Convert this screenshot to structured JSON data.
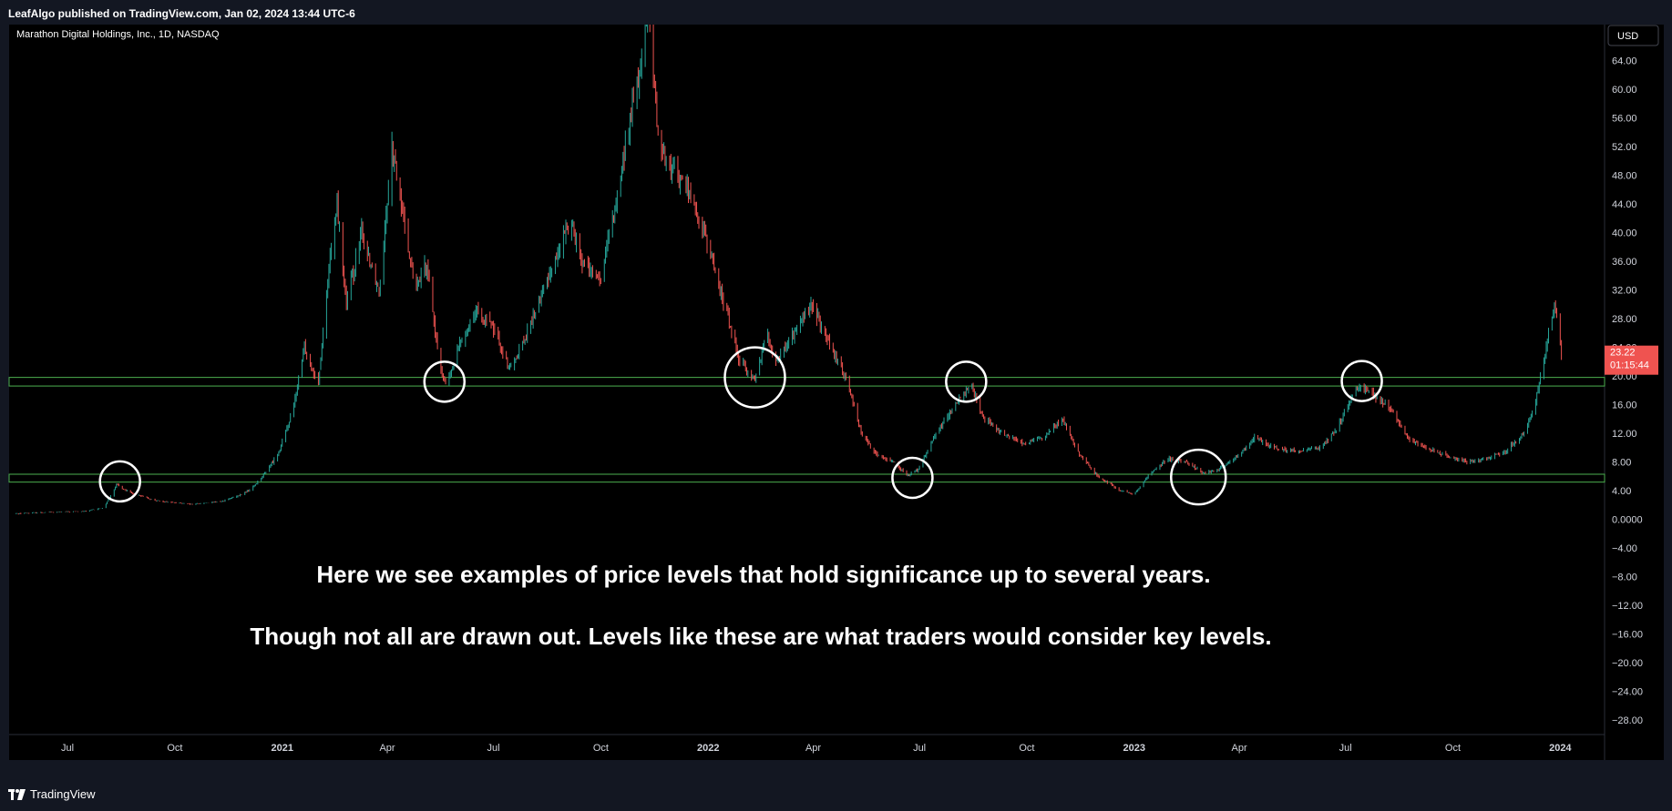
{
  "header": {
    "published": "LeafAlgo published on TradingView.com, Jan 02, 2024 13:44 UTC-6"
  },
  "footer": {
    "brand": "TradingView"
  },
  "colors": {
    "background": "#000000",
    "frame": "#131722",
    "up": "#26a69a",
    "down": "#ef5350",
    "level_line": "#4caf50",
    "annotation": "#ffffff",
    "price_tag": "#ef5350"
  },
  "chart_data": {
    "type": "candlestick",
    "symbol_label": "Marathon Digital Holdings, Inc., 1D, NASDAQ",
    "currency_label": "USD",
    "y_ticks": [
      "64.00",
      "60.00",
      "56.00",
      "52.00",
      "48.00",
      "44.00",
      "40.00",
      "36.00",
      "32.00",
      "28.00",
      "24.00",
      "20.00",
      "16.00",
      "12.00",
      "8.00",
      "4.00",
      "0.0000",
      "−4.00",
      "−8.00",
      "−12.00",
      "−16.00",
      "−20.00",
      "−24.00",
      "−28.00"
    ],
    "ylim": [
      -30,
      69
    ],
    "x_ticks": [
      {
        "label": "Jul",
        "date": "2020-07-01",
        "bold": false
      },
      {
        "label": "Oct",
        "date": "2020-10-01",
        "bold": false
      },
      {
        "label": "2021",
        "date": "2021-01-01",
        "bold": true
      },
      {
        "label": "Apr",
        "date": "2021-04-01",
        "bold": false
      },
      {
        "label": "Jul",
        "date": "2021-07-01",
        "bold": false
      },
      {
        "label": "Oct",
        "date": "2021-10-01",
        "bold": false
      },
      {
        "label": "2022",
        "date": "2022-01-01",
        "bold": true
      },
      {
        "label": "Apr",
        "date": "2022-04-01",
        "bold": false
      },
      {
        "label": "Jul",
        "date": "2022-07-01",
        "bold": false
      },
      {
        "label": "Oct",
        "date": "2022-10-01",
        "bold": false
      },
      {
        "label": "2023",
        "date": "2023-01-01",
        "bold": true
      },
      {
        "label": "Apr",
        "date": "2023-04-01",
        "bold": false
      },
      {
        "label": "Jul",
        "date": "2023-07-01",
        "bold": false
      },
      {
        "label": "Oct",
        "date": "2023-10-01",
        "bold": false
      },
      {
        "label": "2024",
        "date": "2024-01-01",
        "bold": true
      }
    ],
    "last_price": {
      "value": 23.22,
      "label": "23.22",
      "countdown": "01:15:44"
    },
    "key_level_zones": [
      {
        "low": 18.6,
        "high": 19.8
      },
      {
        "low": 5.2,
        "high": 6.3
      }
    ],
    "circled_touches": [
      {
        "date": "2020-08-15",
        "price": 5.3
      },
      {
        "date": "2021-05-20",
        "price": 19.2
      },
      {
        "date": "2022-02-10",
        "price": 19.8
      },
      {
        "date": "2022-06-25",
        "price": 5.8
      },
      {
        "date": "2022-08-10",
        "price": 19.2
      },
      {
        "date": "2023-02-25",
        "price": 5.9
      },
      {
        "date": "2023-07-15",
        "price": 19.3
      }
    ],
    "price_path": [
      [
        "2020-05-18",
        0.8
      ],
      [
        "2020-06-15",
        1.0
      ],
      [
        "2020-07-15",
        1.1
      ],
      [
        "2020-08-01",
        1.6
      ],
      [
        "2020-08-12",
        4.8
      ],
      [
        "2020-08-25",
        3.6
      ],
      [
        "2020-09-15",
        2.6
      ],
      [
        "2020-10-15",
        2.1
      ],
      [
        "2020-11-10",
        2.5
      ],
      [
        "2020-11-25",
        3.3
      ],
      [
        "2020-12-05",
        4.2
      ],
      [
        "2020-12-15",
        6.0
      ],
      [
        "2020-12-28",
        9.0
      ],
      [
        "2021-01-10",
        15.0
      ],
      [
        "2021-01-20",
        24.0
      ],
      [
        "2021-02-01",
        19.0
      ],
      [
        "2021-02-10",
        35.0
      ],
      [
        "2021-02-17",
        44.0
      ],
      [
        "2021-02-25",
        30.0
      ],
      [
        "2021-03-10",
        40.0
      ],
      [
        "2021-03-25",
        32.0
      ],
      [
        "2021-04-05",
        52.0
      ],
      [
        "2021-04-15",
        42.0
      ],
      [
        "2021-04-25",
        32.0
      ],
      [
        "2021-05-05",
        36.0
      ],
      [
        "2021-05-15",
        22.0
      ],
      [
        "2021-05-22",
        18.5
      ],
      [
        "2021-06-01",
        24.0
      ],
      [
        "2021-06-15",
        29.0
      ],
      [
        "2021-06-30",
        27.0
      ],
      [
        "2021-07-15",
        21.0
      ],
      [
        "2021-07-30",
        26.0
      ],
      [
        "2021-08-15",
        33.0
      ],
      [
        "2021-08-25",
        37.0
      ],
      [
        "2021-09-05",
        42.0
      ],
      [
        "2021-09-15",
        36.0
      ],
      [
        "2021-09-30",
        33.0
      ],
      [
        "2021-10-15",
        45.0
      ],
      [
        "2021-10-28",
        58.0
      ],
      [
        "2021-11-05",
        64.0
      ],
      [
        "2021-11-10",
        72.0
      ],
      [
        "2021-11-20",
        52.0
      ],
      [
        "2021-12-05",
        48.0
      ],
      [
        "2021-12-15",
        46.0
      ],
      [
        "2022-01-01",
        38.0
      ],
      [
        "2022-01-15",
        30.0
      ],
      [
        "2022-01-28",
        22.0
      ],
      [
        "2022-02-10",
        19.5
      ],
      [
        "2022-02-20",
        26.0
      ],
      [
        "2022-03-01",
        22.0
      ],
      [
        "2022-03-15",
        26.0
      ],
      [
        "2022-03-31",
        30.0
      ],
      [
        "2022-04-15",
        24.0
      ],
      [
        "2022-05-01",
        19.0
      ],
      [
        "2022-05-12",
        12.0
      ],
      [
        "2022-05-25",
        9.0
      ],
      [
        "2022-06-10",
        8.0
      ],
      [
        "2022-06-20",
        6.0
      ],
      [
        "2022-06-30",
        7.0
      ],
      [
        "2022-07-15",
        12.0
      ],
      [
        "2022-08-05",
        17.0
      ],
      [
        "2022-08-15",
        18.5
      ],
      [
        "2022-08-25",
        14.0
      ],
      [
        "2022-09-10",
        12.0
      ],
      [
        "2022-09-30",
        10.5
      ],
      [
        "2022-10-15",
        11.5
      ],
      [
        "2022-11-01",
        14.0
      ],
      [
        "2022-11-15",
        9.0
      ],
      [
        "2022-12-01",
        6.0
      ],
      [
        "2022-12-20",
        4.0
      ],
      [
        "2023-01-01",
        3.5
      ],
      [
        "2023-01-15",
        6.5
      ],
      [
        "2023-01-30",
        8.5
      ],
      [
        "2023-02-15",
        8.0
      ],
      [
        "2023-03-01",
        6.5
      ],
      [
        "2023-03-15",
        7.0
      ],
      [
        "2023-04-01",
        9.0
      ],
      [
        "2023-04-15",
        11.5
      ],
      [
        "2023-05-01",
        10.0
      ],
      [
        "2023-05-20",
        9.5
      ],
      [
        "2023-06-10",
        10.0
      ],
      [
        "2023-06-25",
        13.0
      ],
      [
        "2023-07-10",
        18.5
      ],
      [
        "2023-07-25",
        17.5
      ],
      [
        "2023-08-10",
        15.0
      ],
      [
        "2023-08-25",
        11.0
      ],
      [
        "2023-09-15",
        9.5
      ],
      [
        "2023-10-01",
        8.5
      ],
      [
        "2023-10-15",
        8.0
      ],
      [
        "2023-11-01",
        8.5
      ],
      [
        "2023-11-15",
        9.5
      ],
      [
        "2023-12-01",
        12.0
      ],
      [
        "2023-12-10",
        16.0
      ],
      [
        "2023-12-18",
        22.0
      ],
      [
        "2023-12-22",
        26.0
      ],
      [
        "2023-12-27",
        30.0
      ],
      [
        "2024-01-02",
        23.22
      ]
    ],
    "annotations": [
      "Here we see examples of price levels that hold significance up to several years.",
      "Though not all are drawn out. Levels like these are what traders would consider key levels."
    ]
  }
}
